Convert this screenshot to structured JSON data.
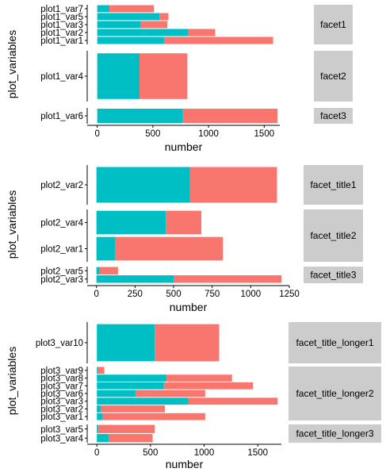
{
  "colors": {
    "series_a": "#00BFC4",
    "series_b": "#F8766D",
    "strip": "#CCCCCC"
  },
  "chart_data": [
    {
      "type": "bar",
      "orientation": "horizontal",
      "stacked": true,
      "xlabel": "number",
      "ylabel": "plot_variables",
      "xlim": [
        -90,
        1640
      ],
      "xticks": [
        0,
        500,
        1000,
        1500
      ],
      "xtick_labels": [
        "0",
        "500",
        "1000",
        "1500"
      ],
      "facets": [
        {
          "title": "facet1",
          "bars": [
            {
              "category": "plot1_var7",
              "a": 110,
              "b": 400
            },
            {
              "category": "plot1_var5",
              "a": 560,
              "b": 80
            },
            {
              "category": "plot1_var3",
              "a": 390,
              "b": 240
            },
            {
              "category": "plot1_var2",
              "a": 820,
              "b": 240
            },
            {
              "category": "plot1_var1",
              "a": 600,
              "b": 980
            }
          ]
        },
        {
          "title": "facet2",
          "bars": [
            {
              "category": "plot1_var4",
              "a": 380,
              "b": 430
            }
          ]
        },
        {
          "title": "facet3",
          "bars": [
            {
              "category": "plot1_var6",
              "a": 770,
              "b": 850
            }
          ]
        }
      ]
    },
    {
      "type": "bar",
      "orientation": "horizontal",
      "stacked": true,
      "xlabel": "number",
      "ylabel": "plot_variables",
      "xlim": [
        -60,
        1250
      ],
      "xticks": [
        0,
        250,
        500,
        750,
        1000,
        1250
      ],
      "xtick_labels": [
        "0",
        "250",
        "500",
        "750",
        "1000",
        "1250"
      ],
      "facets": [
        {
          "title": "facet_title1",
          "bars": [
            {
              "category": "plot2_var2",
              "a": 605,
              "b": 565
            }
          ]
        },
        {
          "title": "facet_title2",
          "bars": [
            {
              "category": "plot2_var4",
              "a": 450,
              "b": 230
            },
            {
              "category": "plot2_var1",
              "a": 120,
              "b": 700
            }
          ]
        },
        {
          "title": "facet_title3",
          "bars": [
            {
              "category": "plot2_var5",
              "a": 20,
              "b": 120
            },
            {
              "category": "plot2_var3",
              "a": 500,
              "b": 700
            }
          ]
        }
      ]
    },
    {
      "type": "bar",
      "orientation": "horizontal",
      "stacked": true,
      "xlabel": "number",
      "ylabel": "plot_variables",
      "xlim": [
        -90,
        1720
      ],
      "xticks": [
        0,
        500,
        1000,
        1500
      ],
      "xtick_labels": [
        "0",
        "500",
        "1000",
        "1500"
      ],
      "facets": [
        {
          "title": "facet_title_longer1",
          "bars": [
            {
              "category": "plot3_var10",
              "a": 540,
              "b": 600
            }
          ]
        },
        {
          "title": "facet_title_longer2",
          "bars": [
            {
              "category": "plot3_var9",
              "a": 10,
              "b": 60
            },
            {
              "category": "plot3_var8",
              "a": 650,
              "b": 610
            },
            {
              "category": "plot3_var7",
              "a": 625,
              "b": 830
            },
            {
              "category": "plot3_var6",
              "a": 360,
              "b": 650
            },
            {
              "category": "plot3_var3",
              "a": 855,
              "b": 830
            },
            {
              "category": "plot3_var2",
              "a": 35,
              "b": 600
            },
            {
              "category": "plot3_var1",
              "a": 55,
              "b": 955
            }
          ]
        },
        {
          "title": "facet_title_longer3",
          "bars": [
            {
              "category": "plot3_var5",
              "a": 15,
              "b": 525
            },
            {
              "category": "plot3_var4",
              "a": 110,
              "b": 410
            }
          ]
        }
      ]
    }
  ]
}
